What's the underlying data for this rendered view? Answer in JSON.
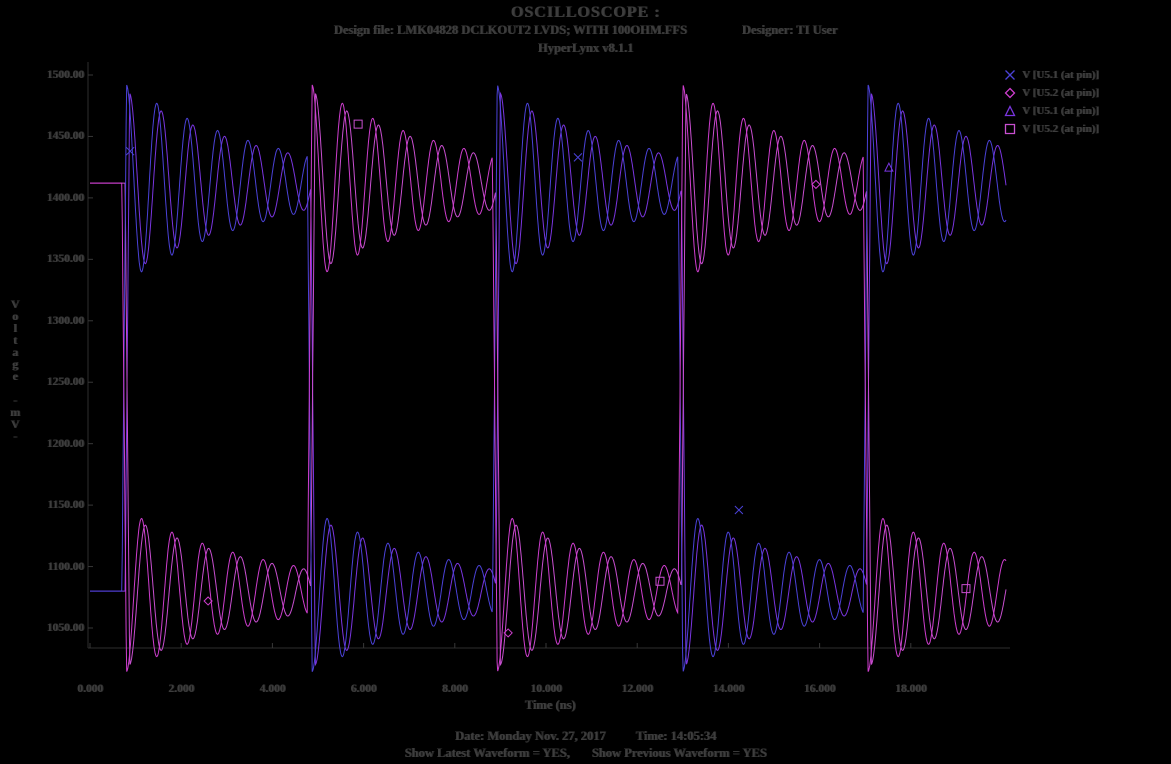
{
  "header": {
    "title": "OSCILLOSCOPE :",
    "design_file_label": "Design file: LMK04828 DCLKOUT2 LVDS; WITH 100OHM.FFS",
    "designer_label": "Designer: TI User",
    "app_version": "HyperLynx v8.1.1"
  },
  "footer": {
    "date": "Date: Monday Nov. 27, 2017",
    "time": "Time: 14:05:34",
    "show_latest": "Show Latest Waveform = YES,",
    "show_previous": "Show Previous Waveform = YES"
  },
  "colors": {
    "background": "#000000",
    "text": "#3d3d3d",
    "axis": "#2e2e2e",
    "tick": "#383838"
  },
  "chart_data": {
    "type": "line",
    "title": "OSCILLOSCOPE :",
    "xlabel": "Time (ns)",
    "ylabel": "Voltage -mV-",
    "xlim": [
      0,
      20.1
    ],
    "ylim": [
      1011,
      1512
    ],
    "grid": false,
    "legend_position": "top-right",
    "x_ticks": {
      "values": [
        0,
        2,
        4,
        6,
        8,
        10,
        12,
        14,
        16,
        18
      ],
      "labels": [
        "0.000",
        "2.000",
        "4.000",
        "6.000",
        "8.000",
        "10.000",
        "12.000",
        "14.000",
        "16.000",
        "18.000"
      ]
    },
    "y_ticks": {
      "values": [
        1500,
        1450,
        1400,
        1350,
        1300,
        1250,
        1200,
        1150,
        1100,
        1050
      ],
      "labels": [
        "1500.00",
        "1450.00",
        "1400.00",
        "1350.00",
        "1300.00",
        "1250.00",
        "1200.00",
        "1150.00",
        "1100.00",
        "1050.00"
      ]
    },
    "waveform": {
      "high_mV": 1412,
      "low_mV": 1080,
      "crossings_ns": [
        0.7,
        4.77,
        8.83,
        12.9,
        16.96
      ],
      "transition_ns": 0.1,
      "ring_tau_ns": 3.2,
      "under_ratio": 0.82,
      "sample_step_ns": 0.012,
      "t_start_ns": 0,
      "t_end_ns": 20.1
    },
    "series": [
      {
        "name": "V [U5.1 (at pin)]",
        "marker": "x",
        "color": "#4b42d8",
        "starts_high": false,
        "cross_offset_ns": 0,
        "ring_amp_mV": 80,
        "ring_freq_GHz": 1.5
      },
      {
        "name": "V [U5.2 (at pin)]",
        "marker": "diamond",
        "color": "#cf3ecf",
        "starts_high": true,
        "cross_offset_ns": 0,
        "ring_amp_mV": 80,
        "ring_freq_GHz": 1.5
      },
      {
        "name": "V [U5.1 (at pin)]",
        "marker": "triangle",
        "color": "#7a35e0",
        "starts_high": false,
        "cross_offset_ns": 0.07,
        "ring_amp_mV": 73,
        "ring_freq_GHz": 1.44
      },
      {
        "name": "V [U5.2 (at pin)]",
        "marker": "square",
        "color": "#c84fd0",
        "starts_high": true,
        "cross_offset_ns": 0.07,
        "ring_amp_mV": 73,
        "ring_freq_GHz": 1.44
      }
    ],
    "marker_points": [
      {
        "series": 0,
        "t_ns": 0.88,
        "v_mV": 1438
      },
      {
        "series": 0,
        "t_ns": 10.7,
        "v_mV": 1433
      },
      {
        "series": 0,
        "t_ns": 14.23,
        "v_mV": 1146
      },
      {
        "series": 1,
        "t_ns": 2.59,
        "v_mV": 1072
      },
      {
        "series": 1,
        "t_ns": 9.17,
        "v_mV": 1046
      },
      {
        "series": 1,
        "t_ns": 15.92,
        "v_mV": 1411
      },
      {
        "series": 2,
        "t_ns": 17.52,
        "v_mV": 1425
      },
      {
        "series": 3,
        "t_ns": 5.88,
        "v_mV": 1460
      },
      {
        "series": 3,
        "t_ns": 12.5,
        "v_mV": 1088
      },
      {
        "series": 3,
        "t_ns": 19.21,
        "v_mV": 1082
      }
    ]
  }
}
